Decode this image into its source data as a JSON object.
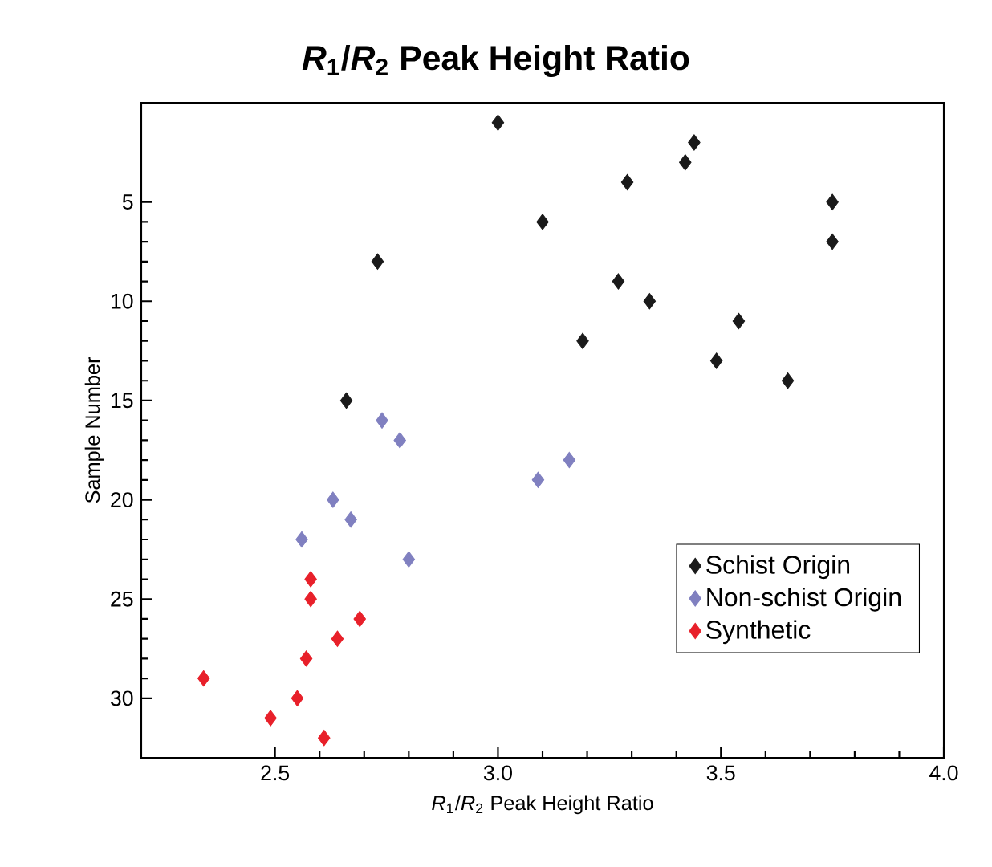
{
  "chart_data": {
    "type": "scatter",
    "title": "*R*$_{1}$/*R*$_{2}$ Peak Height Ratio",
    "xlabel": "*R*$_{1}$/*R*$_{2}$ Peak Height Ratio",
    "ylabel": "Sample Number",
    "xlim": [
      2.2,
      4.0
    ],
    "xticks": [
      {
        "value": 2.5,
        "label": "2.5"
      },
      {
        "value": 3.0,
        "label": "3.0"
      },
      {
        "value": 3.5,
        "label": "3.5"
      },
      {
        "value": 4.0,
        "label": "4.0"
      }
    ],
    "ylim": [
      33,
      0
    ],
    "yticks": [
      5,
      10,
      15,
      20,
      25,
      30
    ],
    "grid": false,
    "legend": "bottom right",
    "marker": "diamond",
    "series": [
      {
        "name": "Schist Origin",
        "color": "#1a1a1a",
        "x": [
          3.0,
          3.44,
          3.42,
          3.29,
          3.75,
          3.1,
          3.75,
          2.73,
          3.27,
          3.34,
          3.54,
          3.19,
          3.49,
          3.65,
          2.66
        ],
        "values": [
          1,
          2,
          3,
          4,
          5,
          6,
          7,
          8,
          9,
          10,
          11,
          12,
          13,
          14,
          15
        ]
      },
      {
        "name": "Non-schist Origin",
        "color": "#8080c0",
        "x": [
          2.74,
          2.78,
          3.16,
          3.09,
          2.63,
          2.67,
          2.56,
          2.8
        ],
        "values": [
          16,
          17,
          18,
          19,
          20,
          21,
          22,
          23
        ]
      },
      {
        "name": "Synthetic",
        "color": "#e8202a",
        "x": [
          2.58,
          2.58,
          2.69,
          2.64,
          2.57,
          2.34,
          2.55,
          2.49,
          2.61
        ],
        "values": [
          24,
          25,
          26,
          27,
          28,
          29,
          30,
          31,
          32
        ]
      }
    ]
  }
}
